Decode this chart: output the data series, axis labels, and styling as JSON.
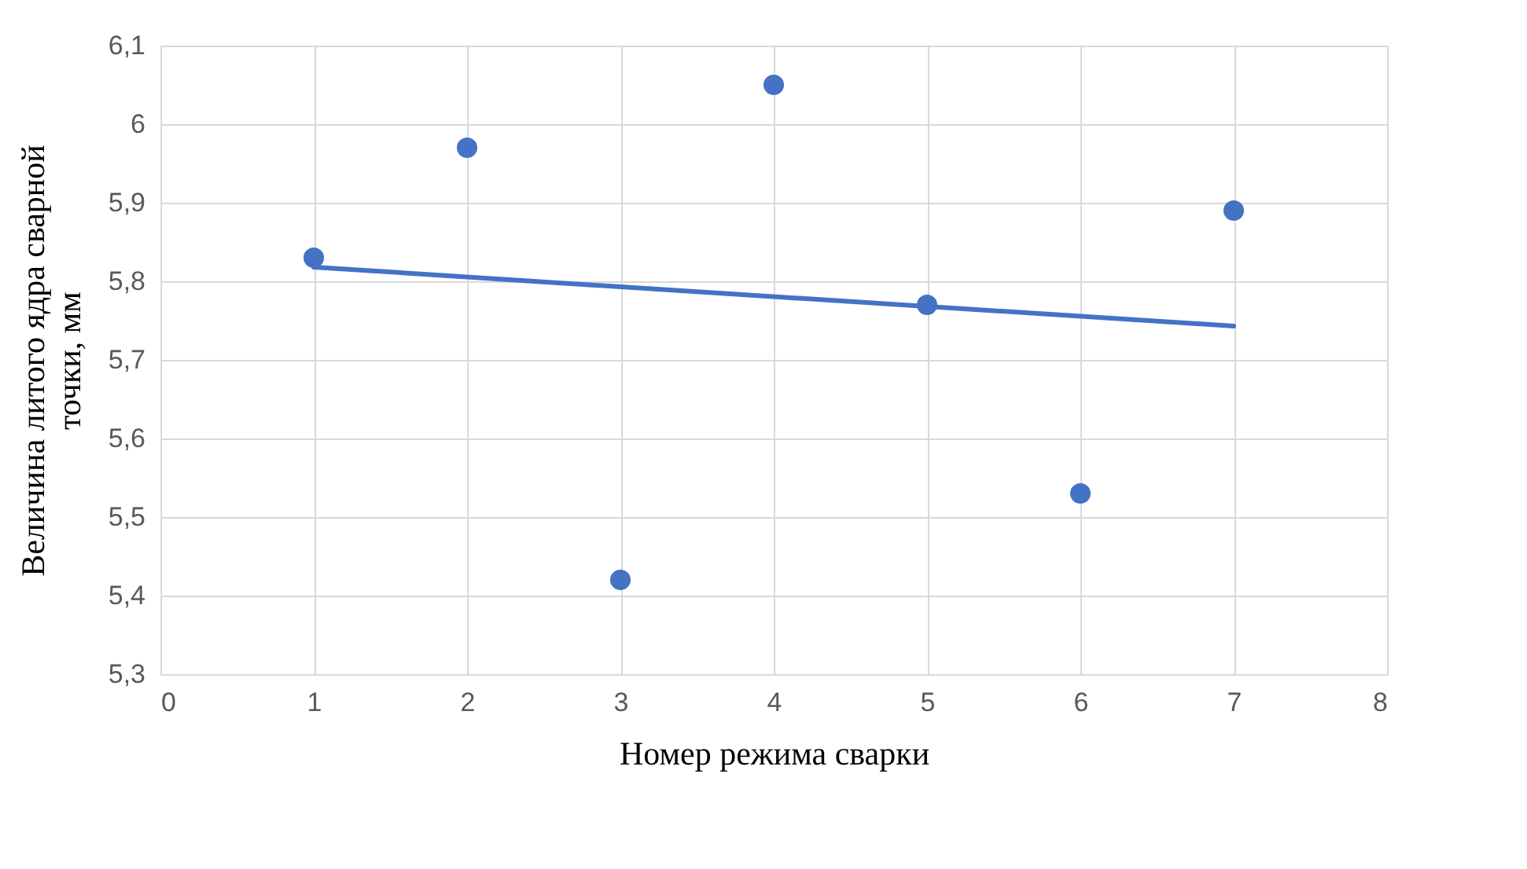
{
  "chart_data": {
    "type": "scatter",
    "xlabel": "Номер режима сварки",
    "ylabel": "Величина литого ядра сварной точки, мм",
    "series": [
      {
        "color": "#4472c4",
        "marker": "circle",
        "x": [
          1,
          2,
          3,
          4,
          5,
          6,
          7
        ],
        "values": [
          5.83,
          5.97,
          5.42,
          6.05,
          5.77,
          5.53,
          5.89
        ]
      },
      {
        "type": "line",
        "marker": "none",
        "color": "#4472c4",
        "x": [
          1,
          7
        ],
        "values": [
          5.818,
          5.743
        ]
      }
    ],
    "xlim": [
      0,
      8
    ],
    "xticks": [
      0,
      1,
      2,
      3,
      4,
      5,
      6,
      7,
      8
    ],
    "ylim": [
      5.3,
      6.1
    ],
    "yticks": [
      {
        "value": 5.3,
        "label": "5,3"
      },
      {
        "value": 5.4,
        "label": "5,4"
      },
      {
        "value": 5.5,
        "label": "5,5"
      },
      {
        "value": 5.6,
        "label": "5,6"
      },
      {
        "value": 5.7,
        "label": "5,7"
      },
      {
        "value": 5.8,
        "label": "5,8"
      },
      {
        "value": 5.9,
        "label": "5,9"
      },
      {
        "value": 6.0,
        "label": "6"
      },
      {
        "value": 6.1,
        "label": "6,1"
      }
    ],
    "grid": true
  }
}
